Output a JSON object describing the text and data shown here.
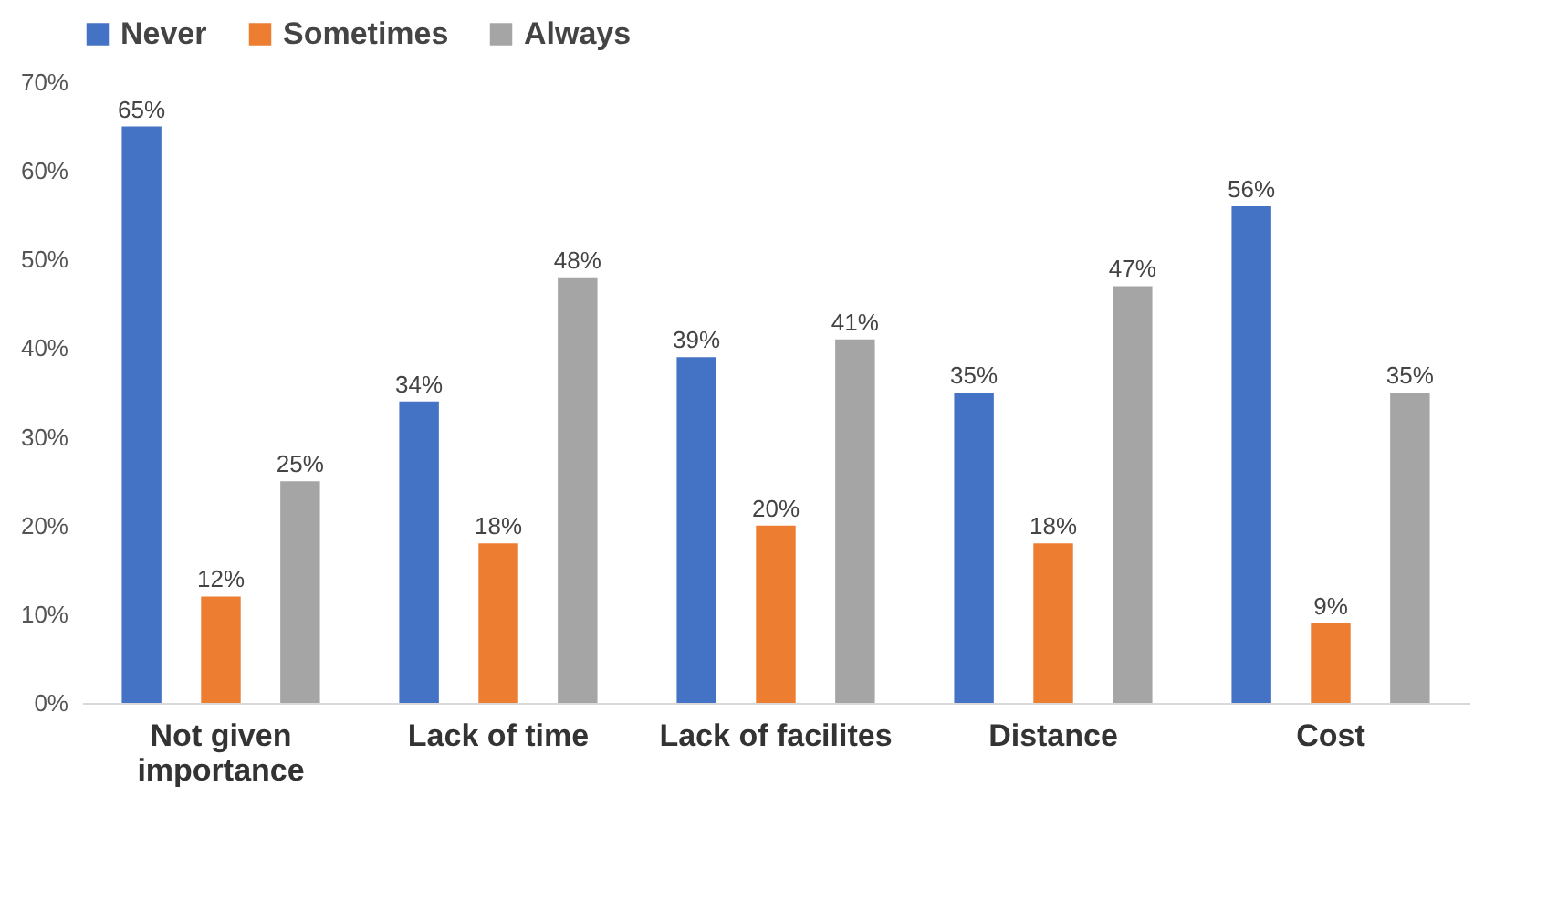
{
  "chart_data": {
    "type": "bar",
    "categories": [
      "Not given importance",
      "Lack of time",
      "Lack of facilites",
      "Distance",
      "Cost"
    ],
    "series": [
      {
        "name": "Never",
        "color": "#4472c4",
        "values": [
          65,
          34,
          39,
          35,
          56
        ],
        "value_labels": [
          "65%",
          "34%",
          "39%",
          "35%",
          "56%"
        ]
      },
      {
        "name": "Sometimes",
        "color": "#ed7d31",
        "values": [
          12,
          18,
          20,
          18,
          9
        ],
        "value_labels": [
          "12%",
          "18%",
          "20%",
          "18%",
          "9%"
        ]
      },
      {
        "name": "Always",
        "color": "#a5a5a5",
        "values": [
          25,
          48,
          41,
          47,
          35
        ],
        "value_labels": [
          "25%",
          "48%",
          "41%",
          "47%",
          "35%"
        ]
      }
    ],
    "ylim": [
      0,
      70
    ],
    "yticks": [
      {
        "value": 0,
        "label": "0%"
      },
      {
        "value": 10,
        "label": "10%"
      },
      {
        "value": 20,
        "label": "20%"
      },
      {
        "value": 30,
        "label": "30%"
      },
      {
        "value": 40,
        "label": "40%"
      },
      {
        "value": 50,
        "label": "50%"
      },
      {
        "value": 60,
        "label": "60%"
      },
      {
        "value": 70,
        "label": "70%"
      }
    ],
    "grid": false,
    "legend": "top"
  }
}
